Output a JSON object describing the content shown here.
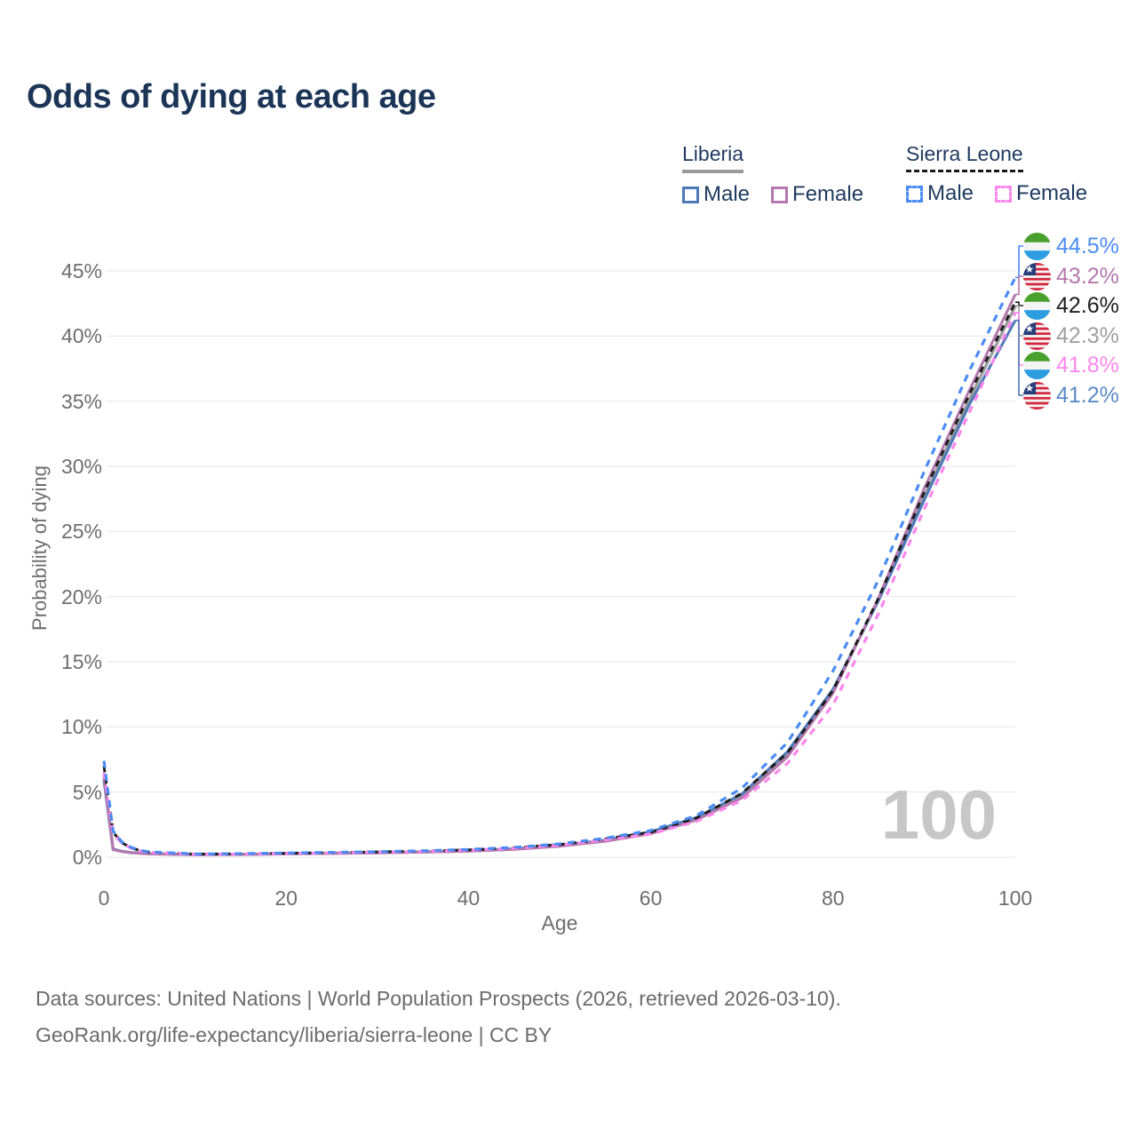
{
  "page": {
    "title": "Odds of dying at each age"
  },
  "legend": {
    "groups": [
      {
        "title": "Liberia",
        "underline": {
          "style": "solid",
          "color": "#9a9a9a"
        },
        "items": [
          {
            "label": "Male",
            "color": "#4e79b8",
            "dash": false
          },
          {
            "label": "Female",
            "color": "#b478ae",
            "dash": false
          }
        ]
      },
      {
        "title": "Sierra Leone",
        "underline": {
          "style": "dashed",
          "color": "#1a1a1a"
        },
        "items": [
          {
            "label": "Male",
            "color": "#4a8bf5",
            "dash": true
          },
          {
            "label": "Female",
            "color": "#fc86ec",
            "dash": true
          }
        ]
      }
    ]
  },
  "chart_data": {
    "type": "line",
    "title": "Odds of dying at each age",
    "xlabel": "Age",
    "ylabel": "Probability of dying",
    "xlim": [
      0,
      100
    ],
    "ylim": [
      0,
      45
    ],
    "grid": "horizontal-light",
    "grid_color": "#e9e9e9",
    "watermark": "100",
    "xticks": [
      {
        "v": 0,
        "label": "0"
      },
      {
        "v": 20,
        "label": "20"
      },
      {
        "v": 40,
        "label": "40"
      },
      {
        "v": 60,
        "label": "60"
      },
      {
        "v": 80,
        "label": "80"
      },
      {
        "v": 100,
        "label": "100"
      }
    ],
    "yticks": [
      {
        "v": 0,
        "label": "0%"
      },
      {
        "v": 5,
        "label": "5%"
      },
      {
        "v": 10,
        "label": "10%"
      },
      {
        "v": 15,
        "label": "15%"
      },
      {
        "v": 20,
        "label": "20%"
      },
      {
        "v": 25,
        "label": "25%"
      },
      {
        "v": 30,
        "label": "30%"
      },
      {
        "v": 35,
        "label": "35%"
      },
      {
        "v": 40,
        "label": "40%"
      },
      {
        "v": 45,
        "label": "45%"
      }
    ],
    "x": [
      0,
      1,
      2,
      3,
      4,
      5,
      10,
      15,
      20,
      25,
      30,
      35,
      40,
      45,
      50,
      55,
      60,
      65,
      70,
      75,
      80,
      85,
      90,
      95,
      100
    ],
    "series": [
      {
        "id": "liberia-all",
        "name": "Liberia",
        "country": "liberia",
        "color": "#9e9e9e",
        "dash": null,
        "width": 3.4,
        "values": [
          6.1,
          0.6,
          0.44,
          0.35,
          0.3,
          0.26,
          0.2,
          0.21,
          0.26,
          0.3,
          0.34,
          0.4,
          0.48,
          0.62,
          0.87,
          1.26,
          1.88,
          2.95,
          4.7,
          7.9,
          12.7,
          19.8,
          27.7,
          35.2,
          42.3
        ],
        "end_label": {
          "text": "42.3%",
          "color": "#9e9e9e",
          "flag": "liberia"
        }
      },
      {
        "id": "liberia-male",
        "name": "Liberia Male",
        "country": "liberia",
        "color": "#4e79b8",
        "dash": null,
        "width": 3,
        "values": [
          5.9,
          0.62,
          0.45,
          0.36,
          0.31,
          0.27,
          0.2,
          0.22,
          0.27,
          0.31,
          0.35,
          0.41,
          0.5,
          0.65,
          0.9,
          1.3,
          1.95,
          3.05,
          4.85,
          8.1,
          12.9,
          19.7,
          27.4,
          34.8,
          41.2
        ],
        "end_label": {
          "text": "41.2%",
          "color": "#5b8ac6",
          "flag": "liberia"
        }
      },
      {
        "id": "liberia-female",
        "name": "Liberia Female",
        "country": "liberia",
        "color": "#b478ae",
        "dash": null,
        "width": 3,
        "values": [
          6.3,
          0.58,
          0.42,
          0.34,
          0.29,
          0.25,
          0.19,
          0.21,
          0.25,
          0.28,
          0.32,
          0.38,
          0.46,
          0.6,
          0.84,
          1.22,
          1.8,
          2.85,
          4.55,
          7.7,
          12.6,
          19.9,
          28.3,
          35.9,
          43.2
        ],
        "end_label": {
          "text": "43.2%",
          "color": "#b478ae",
          "flag": "liberia"
        }
      },
      {
        "id": "sierra-leone-all",
        "name": "Sierra Leone",
        "country": "sierra-leone",
        "color": "#1d1d1d",
        "dash": "7 6",
        "width": 3,
        "values": [
          7.0,
          1.9,
          1.1,
          0.72,
          0.5,
          0.38,
          0.24,
          0.26,
          0.3,
          0.35,
          0.4,
          0.47,
          0.56,
          0.72,
          0.97,
          1.4,
          1.92,
          3.0,
          4.9,
          8.0,
          12.8,
          19.9,
          28.0,
          35.6,
          42.6
        ],
        "end_label": {
          "text": "42.6%",
          "color": "#1d1d1d",
          "flag": "sierra-leone"
        }
      },
      {
        "id": "sierra-leone-female",
        "name": "Sierra Leone Female",
        "country": "sierra-leone",
        "color": "#fc86ec",
        "dash": "8 7",
        "width": 3.2,
        "values": [
          6.5,
          1.8,
          1.05,
          0.68,
          0.47,
          0.36,
          0.22,
          0.24,
          0.28,
          0.33,
          0.38,
          0.44,
          0.53,
          0.68,
          0.92,
          1.32,
          1.78,
          2.75,
          4.35,
          7.2,
          11.7,
          18.7,
          26.7,
          34.2,
          41.8
        ],
        "end_label": {
          "text": "41.8%",
          "color": "#fc86ec",
          "flag": "sierra-leone"
        }
      },
      {
        "id": "sierra-leone-male",
        "name": "Sierra Leone Male",
        "country": "sierra-leone",
        "color": "#4a8bf5",
        "dash": "8 7",
        "width": 3.2,
        "values": [
          7.4,
          2.0,
          1.15,
          0.75,
          0.52,
          0.4,
          0.25,
          0.27,
          0.32,
          0.37,
          0.42,
          0.49,
          0.59,
          0.75,
          1.02,
          1.46,
          2.05,
          3.2,
          5.3,
          8.8,
          14.3,
          21.3,
          29.6,
          37.4,
          44.5
        ],
        "end_label": {
          "text": "44.5%",
          "color": "#4a8bf5",
          "flag": "sierra-leone"
        }
      }
    ],
    "flag_colors": {
      "sierra_leone_green": "#4aa02c",
      "sierra_leone_white": "#f4f4f4",
      "sierra_leone_blue": "#2b9de0",
      "liberia_red": "#d4273e",
      "liberia_white": "#f4f4f4",
      "liberia_canton_blue": "#253e7a"
    }
  },
  "footer": {
    "line1": "Data sources: United Nations | World Population Prospects (2026, retrieved 2026-03-10).",
    "line2": "GeoRank.org/life-expectancy/liberia/sierra-leone | CC BY"
  }
}
